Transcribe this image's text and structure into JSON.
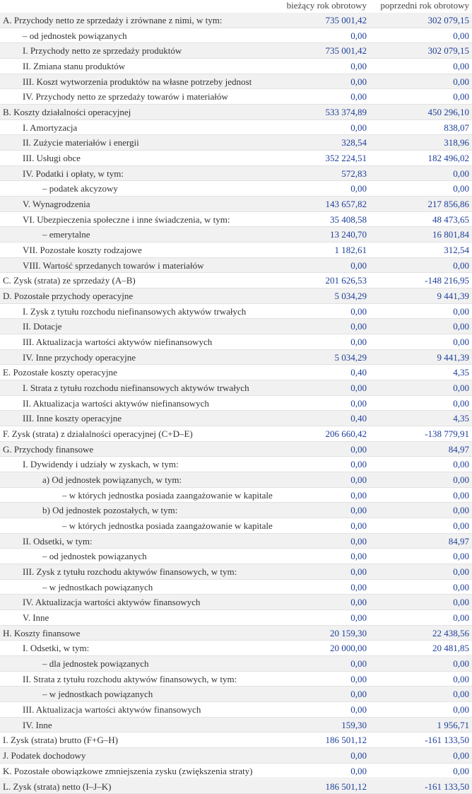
{
  "header": {
    "columns": [
      "bieżący rok obrotowy",
      "poprzedni rok obrotowy"
    ]
  },
  "table": {
    "rows": [
      [
        "A. Przychody netto ze sprzedaży i zrównane z nimi, w tym:",
        "735 001,42",
        "302 079,15"
      ],
      [
        "– od jednostek powiązanych",
        "0,00",
        "0,00"
      ],
      [
        "I. Przychody netto ze sprzedaży produktów",
        "735 001,42",
        "302 079,15"
      ],
      [
        "II. Zmiana stanu produktów",
        "0,00",
        "0,00"
      ],
      [
        "III. Koszt wytworzenia produktów na własne potrzeby jednost",
        "0,00",
        "0,00"
      ],
      [
        "IV. Przychody netto ze sprzedaży towarów i materiałów",
        "0,00",
        "0,00"
      ],
      [
        "B. Koszty działalności operacyjnej",
        "533 374,89",
        "450 296,10"
      ],
      [
        "I. Amortyzacja",
        "0,00",
        "838,07"
      ],
      [
        "II. Zużycie materiałów i energii",
        "328,54",
        "318,96"
      ],
      [
        "III. Usługi obce",
        "352 224,51",
        "182 496,02"
      ],
      [
        "IV. Podatki i opłaty, w tym:",
        "572,83",
        "0,00"
      ],
      [
        "– podatek akcyzowy",
        "0,00",
        "0,00"
      ],
      [
        "V. Wynagrodzenia",
        "143 657,82",
        "217 856,86"
      ],
      [
        "VI. Ubezpieczenia społeczne i inne świadczenia, w tym:",
        "35 408,58",
        "48 473,65"
      ],
      [
        "– emerytalne",
        "13 240,70",
        "16 801,84"
      ],
      [
        "VII. Pozostałe koszty rodzajowe",
        "1 182,61",
        "312,54"
      ],
      [
        "VIII. Wartość sprzedanych towarów i materiałów",
        "0,00",
        "0,00"
      ],
      [
        "C. Zysk (strata) ze sprzedaży (A–B)",
        "201 626,53",
        "-148 216,95"
      ],
      [
        "D. Pozostałe przychody operacyjne",
        "5 034,29",
        "9 441,39"
      ],
      [
        "I. Zysk z tytułu rozchodu niefinansowych aktywów trwałych",
        "0,00",
        "0,00"
      ],
      [
        "II. Dotacje",
        "0,00",
        "0,00"
      ],
      [
        "III. Aktualizacja wartości aktywów niefinansowych",
        "0,00",
        "0,00"
      ],
      [
        "IV. Inne przychody operacyjne",
        "5 034,29",
        "9 441,39"
      ],
      [
        "E. Pozostałe koszty operacyjne",
        "0,40",
        "4,35"
      ],
      [
        "I. Strata z tytułu rozchodu niefinansowych aktywów trwałych",
        "0,00",
        "0,00"
      ],
      [
        "II. Aktualizacja wartości aktywów niefinansowych",
        "0,00",
        "0,00"
      ],
      [
        "III. Inne koszty operacyjne",
        "0,40",
        "4,35"
      ],
      [
        "F. Zysk (strata) z działalności operacyjnej (C+D–E)",
        "206 660,42",
        "-138 779,91"
      ],
      [
        "G. Przychody finansowe",
        "0,00",
        "84,97"
      ],
      [
        "I. Dywidendy i udziały w zyskach, w tym:",
        "0,00",
        "0,00"
      ],
      [
        "a) Od jednostek powiązanych, w tym:",
        "0,00",
        "0,00"
      ],
      [
        "– w których jednostka posiada zaangażowanie w kapitale",
        "0,00",
        "0,00"
      ],
      [
        "b) Od jednostek pozostałych, w tym:",
        "0,00",
        "0,00"
      ],
      [
        "– w których jednostka posiada zaangażowanie w kapitale",
        "0,00",
        "0,00"
      ],
      [
        "II. Odsetki, w tym:",
        "0,00",
        "84,97"
      ],
      [
        "– od jednostek powiązanych",
        "0,00",
        "0,00"
      ],
      [
        "III. Zysk z tytułu rozchodu aktywów finansowych, w tym:",
        "0,00",
        "0,00"
      ],
      [
        "– w jednostkach powiązanych",
        "0,00",
        "0,00"
      ],
      [
        "IV. Aktualizacja wartości aktywów finansowych",
        "0,00",
        "0,00"
      ],
      [
        "V. Inne",
        "0,00",
        "0,00"
      ],
      [
        "H. Koszty finansowe",
        "20 159,30",
        "22 438,56"
      ],
      [
        "I. Odsetki, w tym:",
        "20 000,00",
        "20 481,85"
      ],
      [
        "– dla jednostek powiązanych",
        "0,00",
        "0,00"
      ],
      [
        "II. Strata z tytułu rozchodu aktywów finansowych, w tym:",
        "0,00",
        "0,00"
      ],
      [
        "– w jednostkach powiązanych",
        "0,00",
        "0,00"
      ],
      [
        "III. Aktualizacja wartości aktywów finansowych",
        "0,00",
        "0,00"
      ],
      [
        "IV. Inne",
        "159,30",
        "1 956,71"
      ],
      [
        "I. Zysk (strata) brutto (F+G–H)",
        "186 501,12",
        "-161 133,50"
      ],
      [
        "J. Podatek dochodowy",
        "0,00",
        "0,00"
      ],
      [
        "K. Pozostałe obowiązkowe zmniejszenia zysku (zwiększenia straty)",
        "0,00",
        "0,00"
      ],
      [
        "L. Zysk (strata) netto (I–J–K)",
        "186 501,12",
        "-161 133,50"
      ]
    ]
  }
}
